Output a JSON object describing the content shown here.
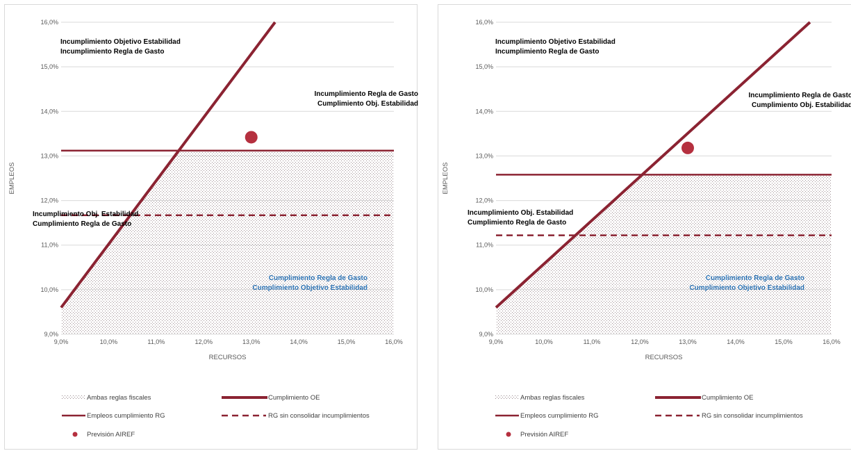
{
  "colors": {
    "line": "#8b2332",
    "point": "#b5303f",
    "grid": "#d9d9d9",
    "hatch": "#9a8a8e",
    "blue_text": "#2e75b6"
  },
  "legend": {
    "hatch": "Ambas reglas fiscales",
    "oe": "Cumplimiento OE",
    "rg": "Empleos cumplimiento RG",
    "rg_dashed": "RG sin consolidar incumplimientos",
    "point": "Previsión AIREF"
  },
  "chart_data": [
    {
      "type": "line",
      "xlabel": "RECURSOS",
      "ylabel": "EMPLEOS",
      "xlim": [
        9.0,
        16.0
      ],
      "ylim": [
        9.0,
        16.0
      ],
      "x_ticks": [
        "9,0%",
        "10,0%",
        "11,0%",
        "12,0%",
        "13,0%",
        "14,0%",
        "15,0%",
        "16,0%"
      ],
      "y_ticks": [
        "9,0%",
        "10,0%",
        "11,0%",
        "12,0%",
        "13,0%",
        "14,0%",
        "15,0%",
        "16,0%"
      ],
      "grid": "horizontal",
      "series": [
        {
          "name": "Cumplimiento OE",
          "kind": "line",
          "points": [
            [
              9.0,
              9.6
            ],
            [
              13.5,
              16.0
            ]
          ]
        },
        {
          "name": "Empleos cumplimiento RG",
          "kind": "hline",
          "y": 13.12,
          "x_range": [
            9.0,
            16.0
          ]
        },
        {
          "name": "RG sin consolidar incumplimientos",
          "kind": "dashed-hline",
          "y": 11.67,
          "x_range": [
            9.0,
            16.0
          ]
        },
        {
          "name": "Previsión AIREF",
          "kind": "point",
          "x": 13.0,
          "y": 13.42
        },
        {
          "name": "Ambas reglas fiscales",
          "kind": "area",
          "boundary": "below min(OE, RG)"
        }
      ],
      "annotations": [
        {
          "lines": [
            "Incumplimiento  Objetivo Estabilidad",
            "Incumplimiento  Regla de Gasto"
          ],
          "style": "dark"
        },
        {
          "lines": [
            "Incumplimiento  Regla de Gasto",
            "Cumplimiento Obj. Estabilidad"
          ],
          "style": "dark"
        },
        {
          "lines": [
            "Incumplimiento Obj. Estabilidad",
            "Cumplimiento Regla de Gasto"
          ],
          "style": "dark"
        },
        {
          "lines": [
            "Cumplimiento Regla de Gasto",
            "Cumplimiento Objetivo Estabilidad"
          ],
          "style": "blue"
        }
      ]
    },
    {
      "type": "line",
      "xlabel": "RECURSOS",
      "ylabel": "EMPLEOS",
      "xlim": [
        9.0,
        16.0
      ],
      "ylim": [
        9.0,
        16.0
      ],
      "x_ticks": [
        "9,0%",
        "10,0%",
        "11,0%",
        "12,0%",
        "13,0%",
        "14,0%",
        "15,0%",
        "16,0%"
      ],
      "y_ticks": [
        "9,0%",
        "10,0%",
        "11,0%",
        "12,0%",
        "13,0%",
        "14,0%",
        "15,0%",
        "16,0%"
      ],
      "grid": "horizontal",
      "series": [
        {
          "name": "Cumplimiento OE",
          "kind": "line",
          "points": [
            [
              9.0,
              9.6
            ],
            [
              15.55,
              16.0
            ]
          ]
        },
        {
          "name": "Empleos cumplimiento RG",
          "kind": "hline",
          "y": 12.58,
          "x_range": [
            9.0,
            16.0
          ]
        },
        {
          "name": "RG sin consolidar incumplimientos",
          "kind": "dashed-hline",
          "y": 11.22,
          "x_range": [
            9.0,
            16.0
          ]
        },
        {
          "name": "Previsión AIREF",
          "kind": "point",
          "x": 13.0,
          "y": 13.18
        },
        {
          "name": "Ambas reglas fiscales",
          "kind": "area",
          "boundary": "below min(OE, RG)"
        }
      ],
      "annotations": [
        {
          "lines": [
            "Incumplimiento  Objetivo Estabilidad",
            "Incumplimiento  Regla de Gasto"
          ],
          "style": "dark"
        },
        {
          "lines": [
            "Incumplimiento  Regla de Gasto",
            "Cumplimiento Obj. Estabilidad"
          ],
          "style": "dark"
        },
        {
          "lines": [
            "Incumplimiento Obj. Estabilidad",
            "Cumplimiento Regla de Gasto"
          ],
          "style": "dark"
        },
        {
          "lines": [
            "Cumplimiento Regla de Gasto",
            "Cumplimiento Objetivo Estabilidad"
          ],
          "style": "blue"
        }
      ]
    }
  ]
}
